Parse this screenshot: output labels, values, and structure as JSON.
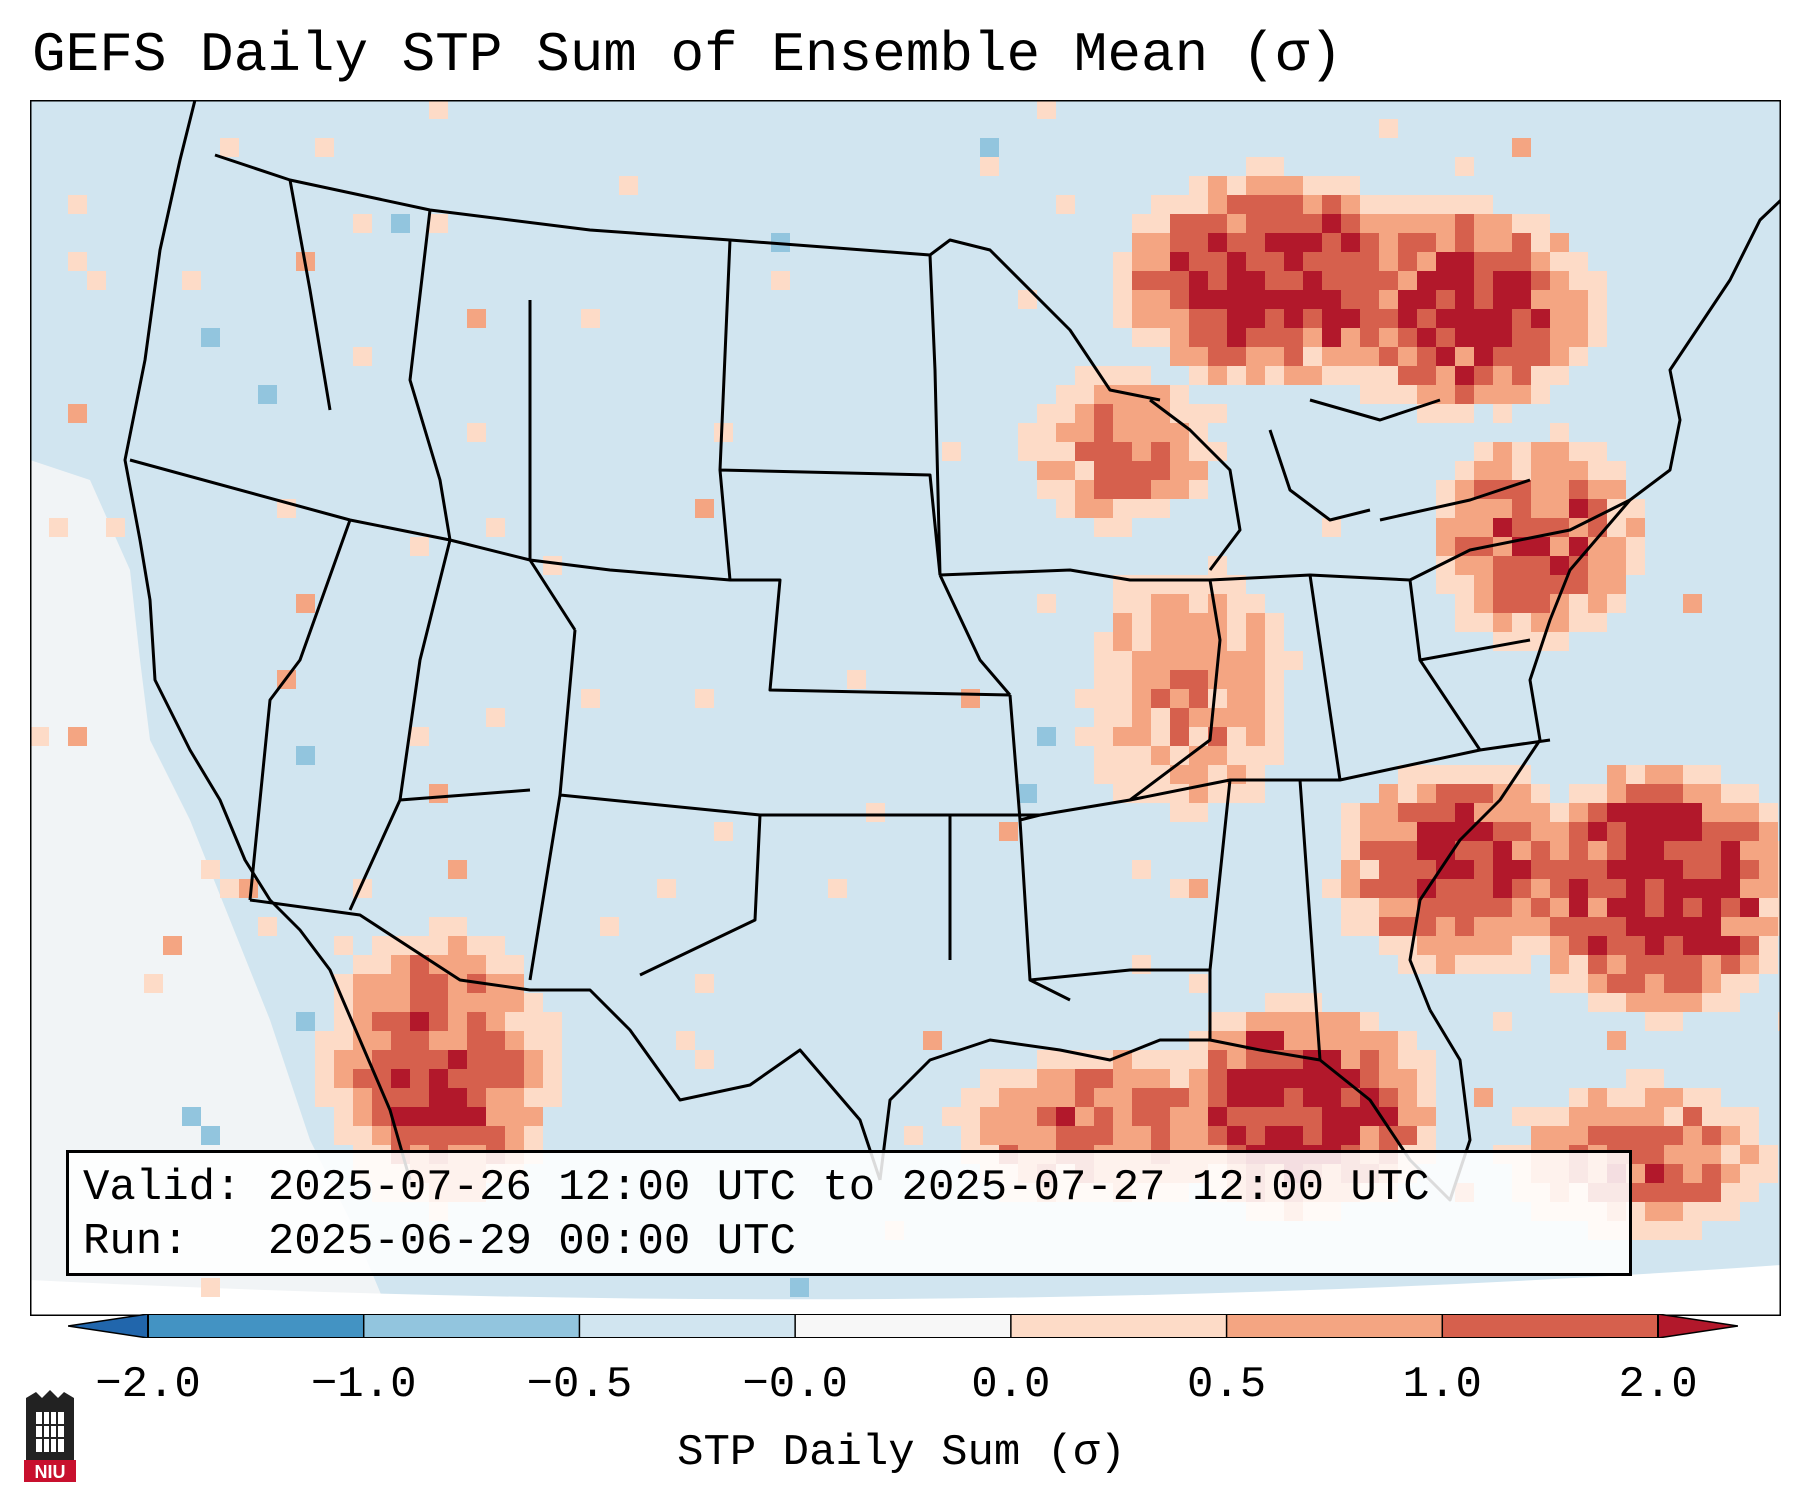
{
  "title": "GEFS Daily STP Sum of Ensemble Mean (σ)",
  "info": {
    "valid_label": "Valid:",
    "valid_value": "2025-07-26 12:00 UTC to 2025-07-27 12:00 UTC",
    "run_label": "Run:",
    "run_value": "2025-06-29 00:00 UTC"
  },
  "colorbar": {
    "label": "STP Daily Sum (σ)",
    "ticks": [
      "−2.0",
      "−1.0",
      "−0.5",
      "−0.0",
      "0.0",
      "0.5",
      "1.0",
      "2.0"
    ],
    "colors": [
      "#4393c3",
      "#92c5de",
      "#d1e5f0",
      "#f7f7f7",
      "#fddbc7",
      "#f4a582",
      "#d6604d",
      "#b2182b"
    ],
    "under_color": "#2166ac",
    "over_color": "#b2182b"
  },
  "map": {
    "background_color": "#d1e5f0",
    "border_color": "#000000"
  },
  "logo": {
    "text": "NIU"
  }
}
